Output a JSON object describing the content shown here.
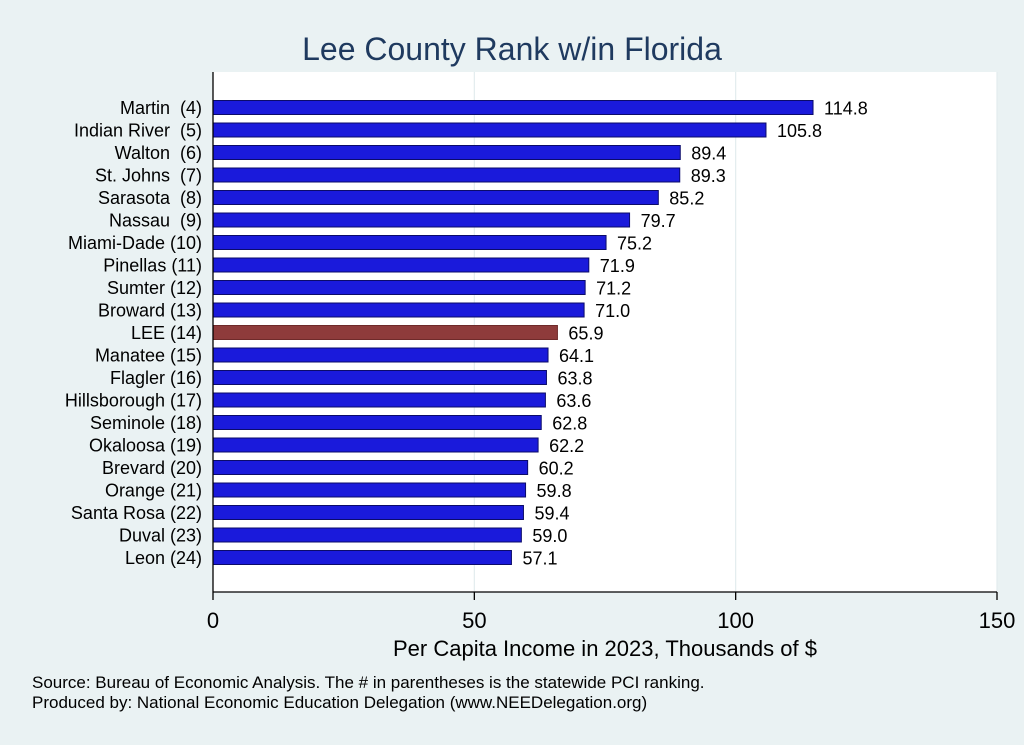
{
  "colors": {
    "background": "#eaf2f3",
    "plot_background": "#ffffff",
    "bar": "#1a1adb",
    "bar_highlight": "#8e3b3b",
    "grid": "#e3ecee",
    "title": "#1f3a5f"
  },
  "notes": {
    "source": "Source: Bureau of Economic Analysis. The # in parentheses is the statewide PCI ranking.",
    "produced_by": "Produced by: National Economic Education Delegation (www.NEEDelegation.org)"
  },
  "chart_data": {
    "type": "bar",
    "orientation": "horizontal",
    "title": "Lee County Rank w/in Florida",
    "xlabel": "Per Capita Income in 2023, Thousands of $",
    "ylabel": "",
    "xlim": [
      0,
      150
    ],
    "xticks": [
      0,
      50,
      100,
      150
    ],
    "grid": true,
    "highlight_category": "LEE (14)",
    "categories": [
      "Martin  (4)",
      "Indian River  (5)",
      "Walton  (6)",
      "St. Johns  (7)",
      "Sarasota  (8)",
      "Nassau  (9)",
      "Miami-Dade (10)",
      "Pinellas (11)",
      "Sumter (12)",
      "Broward (13)",
      "LEE (14)",
      "Manatee (15)",
      "Flagler (16)",
      "Hillsborough (17)",
      "Seminole (18)",
      "Okaloosa (19)",
      "Brevard (20)",
      "Orange (21)",
      "Santa Rosa (22)",
      "Duval (23)",
      "Leon (24)"
    ],
    "values": [
      114.8,
      105.8,
      89.4,
      89.3,
      85.2,
      79.7,
      75.2,
      71.9,
      71.2,
      71.0,
      65.9,
      64.1,
      63.8,
      63.6,
      62.8,
      62.2,
      60.2,
      59.8,
      59.4,
      59.0,
      57.1
    ],
    "value_labels": [
      "114.8",
      "105.8",
      "89.4",
      "89.3",
      "85.2",
      "79.7",
      "75.2",
      "71.9",
      "71.2",
      "71.0",
      "65.9",
      "64.1",
      "63.8",
      "63.6",
      "62.8",
      "62.2",
      "60.2",
      "59.8",
      "59.4",
      "59.0",
      "57.1"
    ]
  }
}
